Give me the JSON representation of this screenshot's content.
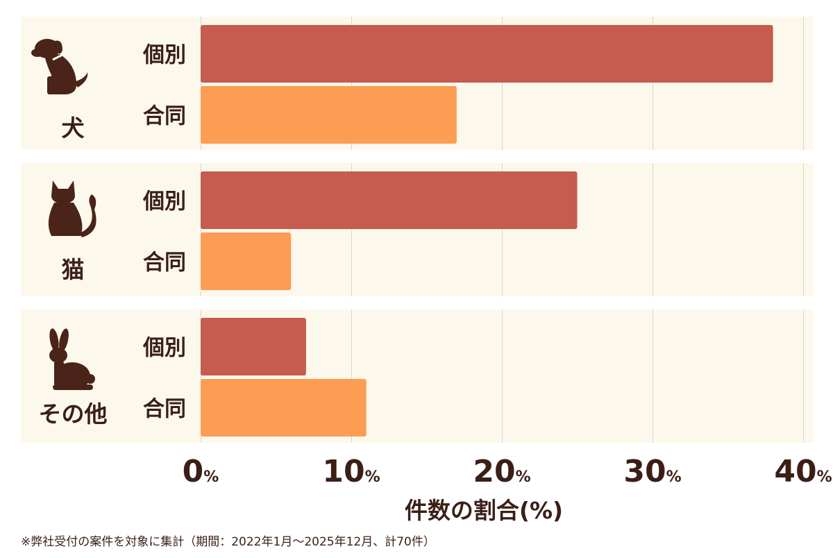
{
  "chart_data": {
    "type": "bar",
    "orientation": "horizontal",
    "groups": [
      {
        "label": "犬",
        "icon": "dog-icon"
      },
      {
        "label": "猫",
        "icon": "cat-icon"
      },
      {
        "label": "その他",
        "icon": "rabbit-icon"
      }
    ],
    "series": [
      {
        "name": "個別",
        "color": "#c65b4e",
        "values": [
          38,
          25,
          7
        ]
      },
      {
        "name": "合同",
        "color": "#fd9c53",
        "values": [
          17,
          6,
          11
        ]
      }
    ],
    "xticks": [
      {
        "num": "0",
        "unit": "%"
      },
      {
        "num": "10",
        "unit": "%"
      },
      {
        "num": "20",
        "unit": "%"
      },
      {
        "num": "30",
        "unit": "%"
      },
      {
        "num": "40",
        "unit": "%"
      }
    ],
    "xlim": [
      0,
      40
    ],
    "xlabel": "件数の割合(%)",
    "grid": true,
    "colors": {
      "group_background": "#fdf8ec",
      "grid_line": "#d9d4cc",
      "text": "#3b1f16"
    }
  },
  "footnote": "※弊社受付の案件を対象に集計（期間：2022年1月～2025年12月、計70件）"
}
